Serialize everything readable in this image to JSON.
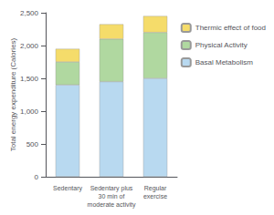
{
  "chart_data": {
    "type": "bar",
    "stacked": true,
    "categories": [
      "Sedentary",
      "Sedentary plus\n30 min of\nmoderate activity",
      "Regular\nexercise"
    ],
    "series": [
      {
        "name": "Basal Metabolism",
        "color": "#b8d9f0",
        "values": [
          1400,
          1450,
          1500
        ]
      },
      {
        "name": "Physical Activity",
        "color": "#b0d8a0",
        "values": [
          350,
          650,
          700
        ]
      },
      {
        "name": "Thermic effect of food",
        "color": "#f5dc6a",
        "values": [
          200,
          225,
          250
        ]
      }
    ],
    "ylabel": "Total energy expenditure (Calories)",
    "ylim": [
      0,
      2500
    ],
    "yticks": [
      0,
      500,
      1000,
      1500,
      2000,
      2500
    ],
    "grid": false,
    "legend": "upper right"
  }
}
